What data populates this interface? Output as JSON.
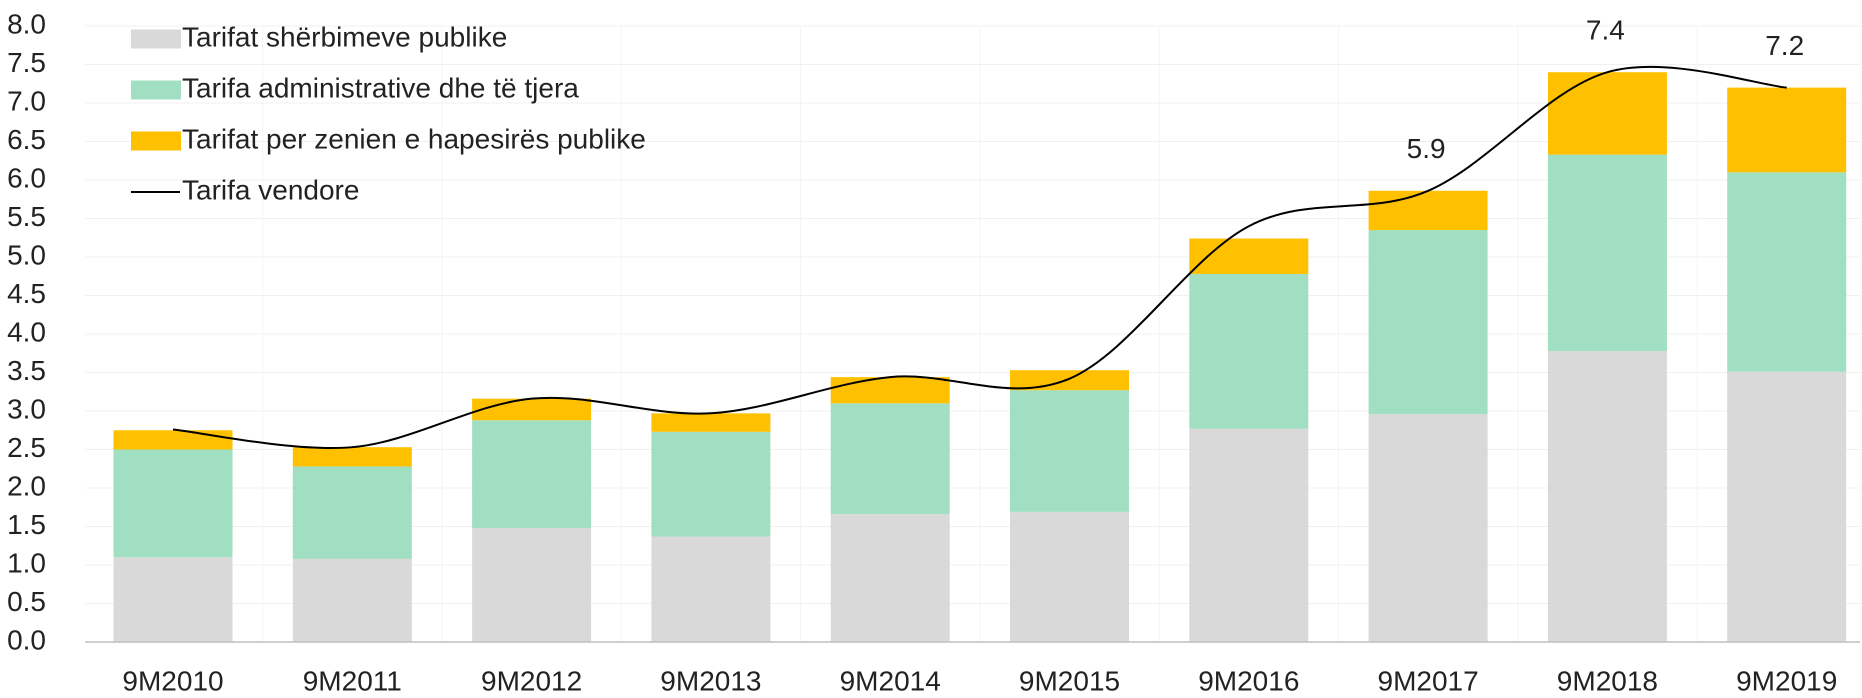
{
  "chart_data": {
    "type": "stacked-bar-line",
    "categories": [
      "9M2010",
      "9M2011",
      "9M2012",
      "9M2013",
      "9M2014",
      "9M2015",
      "9M2016",
      "9M2017",
      "9M2018",
      "9M2019"
    ],
    "series": [
      {
        "name": "Tarifat shërbimeve publike",
        "color": "#d9d9d9",
        "type": "bar",
        "values": [
          1.1,
          1.08,
          1.48,
          1.37,
          1.66,
          1.69,
          2.77,
          2.96,
          3.78,
          3.51
        ]
      },
      {
        "name": "Tarifa administrative dhe të tjera",
        "color": "#a0dfc1",
        "type": "bar",
        "values": [
          1.4,
          1.2,
          1.4,
          1.36,
          1.44,
          1.58,
          2.01,
          2.39,
          2.55,
          2.59
        ]
      },
      {
        "name": "Tarifat per zenien e hapesirës publike",
        "color": "#ffc000",
        "type": "bar",
        "values": [
          0.25,
          0.25,
          0.28,
          0.24,
          0.34,
          0.26,
          0.46,
          0.51,
          1.07,
          1.1
        ]
      },
      {
        "name": "Tarifa vendore",
        "color": "#000000",
        "type": "line",
        "values": [
          2.76,
          2.53,
          3.16,
          2.97,
          3.44,
          3.42,
          5.4,
          5.86,
          7.4,
          7.2
        ],
        "value_labels": [
          null,
          null,
          null,
          null,
          null,
          null,
          null,
          "5.9",
          "7.4",
          "7.2"
        ]
      }
    ],
    "ylim": [
      0,
      8
    ],
    "yticks": [
      {
        "value": 0,
        "label": "0.0"
      },
      {
        "value": 0.5,
        "label": "0.5"
      },
      {
        "value": 1,
        "label": "1.0"
      },
      {
        "value": 1.5,
        "label": "1.5"
      },
      {
        "value": 2,
        "label": "2.0"
      },
      {
        "value": 2.5,
        "label": "2.5"
      },
      {
        "value": 3,
        "label": "3.0"
      },
      {
        "value": 3.5,
        "label": "3.5"
      },
      {
        "value": 4,
        "label": "4.0"
      },
      {
        "value": 4.5,
        "label": "4.5"
      },
      {
        "value": 5,
        "label": "5.0"
      },
      {
        "value": 5.5,
        "label": "5.5"
      },
      {
        "value": 6,
        "label": "6.0"
      },
      {
        "value": 6.5,
        "label": "6.5"
      },
      {
        "value": 7,
        "label": "7.0"
      },
      {
        "value": 7.5,
        "label": "7.5"
      },
      {
        "value": 8,
        "label": "8.0"
      }
    ],
    "grid": true,
    "legend": "top-left"
  }
}
